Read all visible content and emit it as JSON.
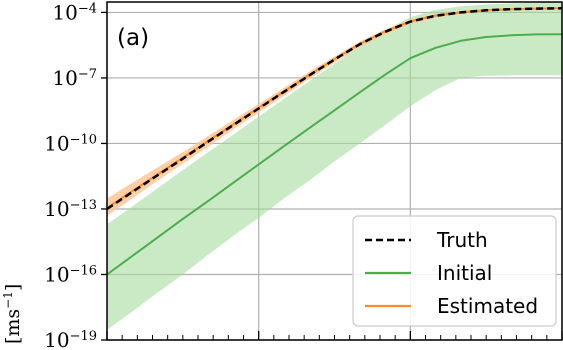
{
  "chart_data": {
    "type": "line",
    "panel_label": "(a)",
    "ylabel": "[ms",
    "ylabel_exponent": "−1",
    "ylabel_close": "]",
    "yscale": "log",
    "ylim": [
      1e-19,
      0.0003
    ],
    "xlim": [
      0,
      9
    ],
    "grid": true,
    "legend_position": "lower-right",
    "y_ticks": [
      {
        "value": 0.0001,
        "base": "10",
        "exp": "−4"
      },
      {
        "value": 1e-07,
        "base": "10",
        "exp": "−7"
      },
      {
        "value": 1e-10,
        "base": "10",
        "exp": "−10"
      },
      {
        "value": 1e-13,
        "base": "10",
        "exp": "−13"
      },
      {
        "value": 1e-16,
        "base": "10",
        "exp": "−16"
      },
      {
        "value": 1e-19,
        "base": "10",
        "exp": "−19"
      }
    ],
    "x_major_ticks": [
      0,
      3,
      6,
      9
    ],
    "x_minor_ticks": [
      0.3,
      0.6,
      0.9,
      1.2,
      1.5,
      1.8,
      2.1,
      2.4,
      2.7,
      3.3,
      3.6,
      3.9,
      4.2,
      4.5,
      4.8,
      5.1,
      5.4,
      5.7,
      6.3,
      6.6,
      6.9,
      7.2,
      7.5,
      7.8,
      8.1,
      8.4,
      8.7
    ],
    "x": [
      0,
      0.5,
      1,
      1.5,
      2,
      2.5,
      3,
      3.5,
      4,
      4.5,
      5,
      5.5,
      6,
      6.5,
      7,
      7.5,
      8,
      8.5,
      9
    ],
    "series": [
      {
        "name": "Truth",
        "color": "#000000",
        "style": "dashed",
        "values": [
          1e-13,
          6e-13,
          3.5e-12,
          2e-11,
          1.2e-10,
          7e-10,
          4e-09,
          2.3e-08,
          1.3e-07,
          7e-07,
          3.5e-06,
          1.3e-05,
          3.8e-05,
          7e-05,
          0.0001,
          0.000125,
          0.00014,
          0.00015,
          0.000155
        ]
      },
      {
        "name": "Initial",
        "color": "#4bae4b",
        "style": "solid",
        "values": [
          1e-16,
          7e-16,
          5e-15,
          3.5e-14,
          2.3e-13,
          1.6e-12,
          1.1e-11,
          7.5e-11,
          5e-10,
          3.3e-09,
          2.2e-08,
          1.4e-07,
          8e-07,
          2.4e-06,
          5e-06,
          7.5e-06,
          9e-06,
          9.8e-06,
          1e-05
        ]
      },
      {
        "name": "Estimated",
        "color": "#ff8a2a",
        "style": "solid",
        "values": [
          1.1e-13,
          6.5e-13,
          3.8e-12,
          2.2e-11,
          1.3e-10,
          7.5e-10,
          4.3e-09,
          2.4e-08,
          1.35e-07,
          7.2e-07,
          3.6e-06,
          1.35e-05,
          3.9e-05,
          7.2e-05,
          0.0001,
          0.000125,
          0.00014,
          0.00015,
          0.000155
        ]
      }
    ],
    "bands": [
      {
        "of": "Initial",
        "color": "#a6dca0",
        "opacity": 0.6,
        "lower": [
          3e-19,
          2e-18,
          1.5e-17,
          1e-16,
          8e-16,
          6e-15,
          4e-14,
          3e-13,
          2e-12,
          1.5e-11,
          1e-10,
          7e-10,
          5e-09,
          2.8e-08,
          1e-07,
          1.25e-07,
          1.3e-07,
          1.3e-07,
          1.3e-07
        ],
        "upper": [
          2e-14,
          1.3e-13,
          9e-13,
          6e-12,
          4e-11,
          2.5e-10,
          1.7e-09,
          1.1e-08,
          7e-08,
          4.5e-07,
          2.8e-06,
          1.5e-05,
          6e-05,
          0.00013,
          0.00019,
          0.00023,
          0.00026,
          0.00028,
          0.00029
        ]
      },
      {
        "of": "Estimated",
        "color": "#ffc48e",
        "opacity": 0.8,
        "lower": [
          5e-14,
          3e-13,
          2e-12,
          1.2e-11,
          7e-11,
          4.5e-10,
          2.6e-09,
          1.5e-08,
          9e-08,
          5e-07,
          2.6e-06,
          1e-05,
          3e-05,
          5.8e-05,
          8.5e-05,
          0.00011,
          0.000125,
          0.000135,
          0.00014
        ],
        "upper": [
          3e-13,
          1.6e-12,
          8e-12,
          4e-11,
          2.2e-10,
          1.2e-09,
          6.5e-09,
          3.5e-08,
          1.9e-07,
          9.5e-07,
          4.6e-06,
          1.65e-05,
          4.7e-05,
          8.5e-05,
          0.00012,
          0.000145,
          0.00016,
          0.00017,
          0.000175
        ]
      }
    ]
  }
}
